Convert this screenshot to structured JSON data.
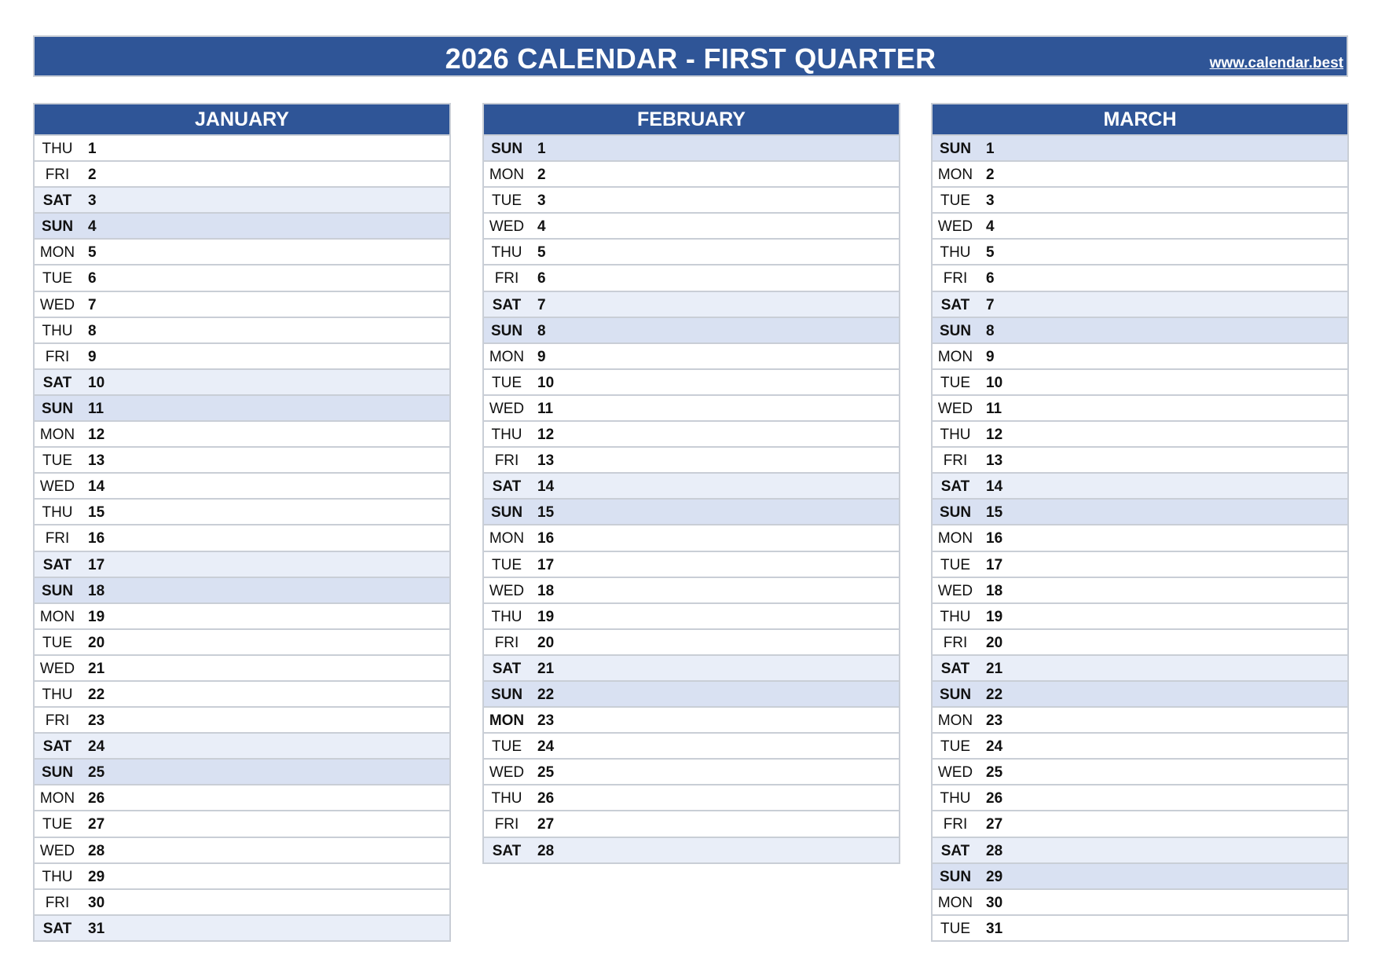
{
  "header": {
    "title": "2026 CALENDAR - FIRST QUARTER",
    "website": "www.calendar.best"
  },
  "colors": {
    "header_bg": "#2F5597",
    "saturday_bg": "#E9EEF8",
    "sunday_bg": "#D9E1F2",
    "border": "#C9CED6"
  },
  "months": [
    {
      "name": "JANUARY",
      "days": [
        {
          "dow": "THU",
          "day": "1"
        },
        {
          "dow": "FRI",
          "day": "2"
        },
        {
          "dow": "SAT",
          "day": "3",
          "type": "sat"
        },
        {
          "dow": "SUN",
          "day": "4",
          "type": "sun"
        },
        {
          "dow": "MON",
          "day": "5"
        },
        {
          "dow": "TUE",
          "day": "6"
        },
        {
          "dow": "WED",
          "day": "7"
        },
        {
          "dow": "THU",
          "day": "8"
        },
        {
          "dow": "FRI",
          "day": "9"
        },
        {
          "dow": "SAT",
          "day": "10",
          "type": "sat"
        },
        {
          "dow": "SUN",
          "day": "11",
          "type": "sun"
        },
        {
          "dow": "MON",
          "day": "12"
        },
        {
          "dow": "TUE",
          "day": "13"
        },
        {
          "dow": "WED",
          "day": "14"
        },
        {
          "dow": "THU",
          "day": "15"
        },
        {
          "dow": "FRI",
          "day": "16"
        },
        {
          "dow": "SAT",
          "day": "17",
          "type": "sat"
        },
        {
          "dow": "SUN",
          "day": "18",
          "type": "sun"
        },
        {
          "dow": "MON",
          "day": "19"
        },
        {
          "dow": "TUE",
          "day": "20"
        },
        {
          "dow": "WED",
          "day": "21"
        },
        {
          "dow": "THU",
          "day": "22"
        },
        {
          "dow": "FRI",
          "day": "23"
        },
        {
          "dow": "SAT",
          "day": "24",
          "type": "sat"
        },
        {
          "dow": "SUN",
          "day": "25",
          "type": "sun"
        },
        {
          "dow": "MON",
          "day": "26"
        },
        {
          "dow": "TUE",
          "day": "27"
        },
        {
          "dow": "WED",
          "day": "28"
        },
        {
          "dow": "THU",
          "day": "29"
        },
        {
          "dow": "FRI",
          "day": "30"
        },
        {
          "dow": "SAT",
          "day": "31",
          "type": "sat"
        }
      ]
    },
    {
      "name": "FEBRUARY",
      "days": [
        {
          "dow": "SUN",
          "day": "1",
          "type": "sun"
        },
        {
          "dow": "MON",
          "day": "2"
        },
        {
          "dow": "TUE",
          "day": "3"
        },
        {
          "dow": "WED",
          "day": "4"
        },
        {
          "dow": "THU",
          "day": "5"
        },
        {
          "dow": "FRI",
          "day": "6"
        },
        {
          "dow": "SAT",
          "day": "7",
          "type": "sat"
        },
        {
          "dow": "SUN",
          "day": "8",
          "type": "sun"
        },
        {
          "dow": "MON",
          "day": "9"
        },
        {
          "dow": "TUE",
          "day": "10"
        },
        {
          "dow": "WED",
          "day": "11"
        },
        {
          "dow": "THU",
          "day": "12"
        },
        {
          "dow": "FRI",
          "day": "13"
        },
        {
          "dow": "SAT",
          "day": "14",
          "type": "sat"
        },
        {
          "dow": "SUN",
          "day": "15",
          "type": "sun"
        },
        {
          "dow": "MON",
          "day": "16"
        },
        {
          "dow": "TUE",
          "day": "17"
        },
        {
          "dow": "WED",
          "day": "18"
        },
        {
          "dow": "THU",
          "day": "19"
        },
        {
          "dow": "FRI",
          "day": "20"
        },
        {
          "dow": "SAT",
          "day": "21",
          "type": "sat"
        },
        {
          "dow": "SUN",
          "day": "22",
          "type": "sun"
        },
        {
          "dow": "MON",
          "day": "23",
          "type": "holiday"
        },
        {
          "dow": "TUE",
          "day": "24"
        },
        {
          "dow": "WED",
          "day": "25"
        },
        {
          "dow": "THU",
          "day": "26"
        },
        {
          "dow": "FRI",
          "day": "27"
        },
        {
          "dow": "SAT",
          "day": "28",
          "type": "sat"
        }
      ]
    },
    {
      "name": "MARCH",
      "days": [
        {
          "dow": "SUN",
          "day": "1",
          "type": "sun"
        },
        {
          "dow": "MON",
          "day": "2"
        },
        {
          "dow": "TUE",
          "day": "3"
        },
        {
          "dow": "WED",
          "day": "4"
        },
        {
          "dow": "THU",
          "day": "5"
        },
        {
          "dow": "FRI",
          "day": "6"
        },
        {
          "dow": "SAT",
          "day": "7",
          "type": "sat"
        },
        {
          "dow": "SUN",
          "day": "8",
          "type": "sun"
        },
        {
          "dow": "MON",
          "day": "9"
        },
        {
          "dow": "TUE",
          "day": "10"
        },
        {
          "dow": "WED",
          "day": "11"
        },
        {
          "dow": "THU",
          "day": "12"
        },
        {
          "dow": "FRI",
          "day": "13"
        },
        {
          "dow": "SAT",
          "day": "14",
          "type": "sat"
        },
        {
          "dow": "SUN",
          "day": "15",
          "type": "sun"
        },
        {
          "dow": "MON",
          "day": "16"
        },
        {
          "dow": "TUE",
          "day": "17"
        },
        {
          "dow": "WED",
          "day": "18"
        },
        {
          "dow": "THU",
          "day": "19"
        },
        {
          "dow": "FRI",
          "day": "20"
        },
        {
          "dow": "SAT",
          "day": "21",
          "type": "sat"
        },
        {
          "dow": "SUN",
          "day": "22",
          "type": "sun"
        },
        {
          "dow": "MON",
          "day": "23"
        },
        {
          "dow": "TUE",
          "day": "24"
        },
        {
          "dow": "WED",
          "day": "25"
        },
        {
          "dow": "THU",
          "day": "26"
        },
        {
          "dow": "FRI",
          "day": "27"
        },
        {
          "dow": "SAT",
          "day": "28",
          "type": "sat"
        },
        {
          "dow": "SUN",
          "day": "29",
          "type": "sun"
        },
        {
          "dow": "MON",
          "day": "30"
        },
        {
          "dow": "TUE",
          "day": "31"
        }
      ]
    }
  ]
}
